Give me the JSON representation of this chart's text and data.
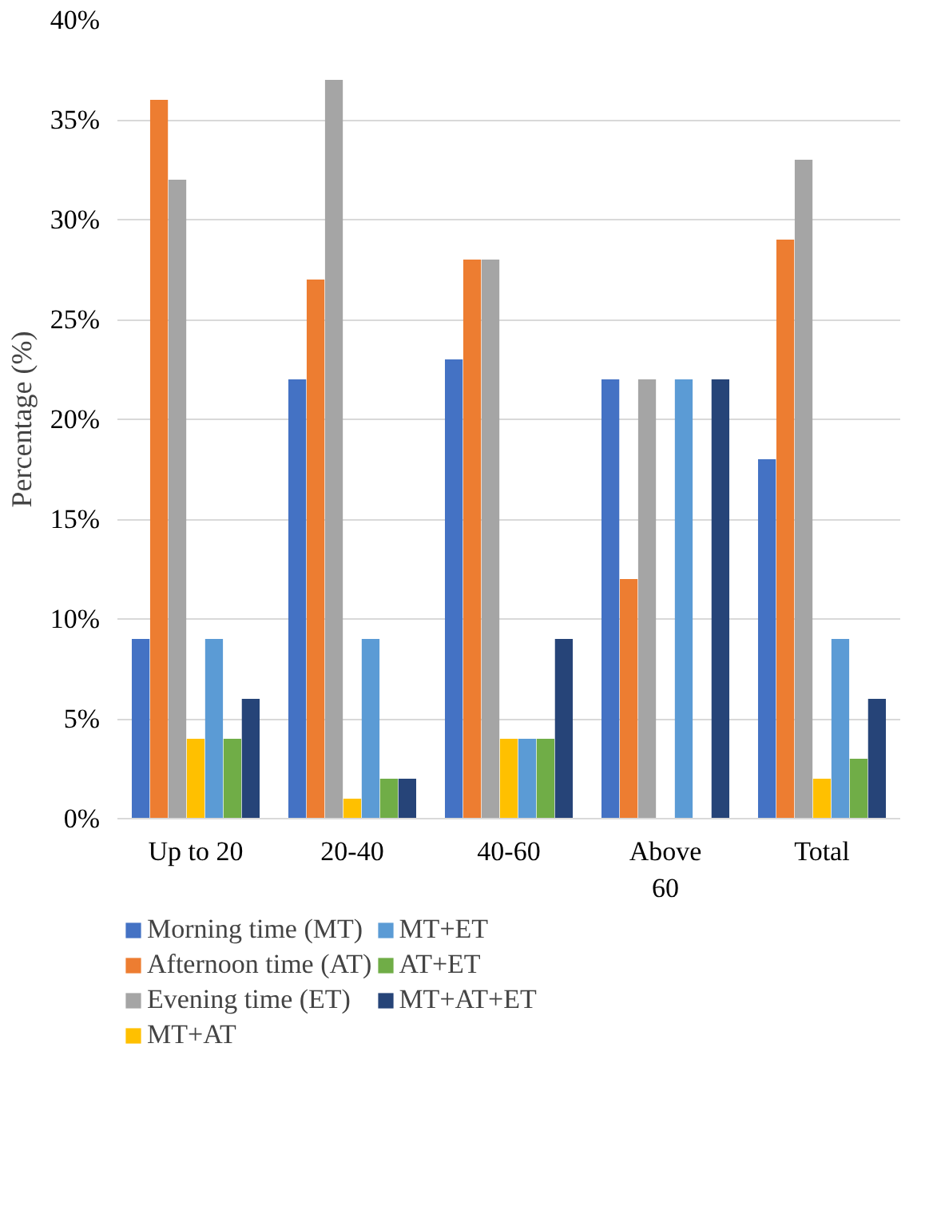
{
  "chart_data": {
    "type": "bar",
    "ylabel": "Percentage (%)",
    "categories": [
      "Up to 20",
      "20-40",
      "40-60",
      "Above 60",
      "Total"
    ],
    "series": [
      {
        "name": "Morning time (MT)",
        "color": "#4472c4",
        "values": [
          9,
          22,
          23,
          22,
          18
        ]
      },
      {
        "name": "Afternoon time (AT)",
        "color": "#ed7d31",
        "values": [
          36,
          27,
          28,
          12,
          29
        ]
      },
      {
        "name": "Evening time (ET)",
        "color": "#a5a5a5",
        "values": [
          32,
          37,
          28,
          22,
          33
        ]
      },
      {
        "name": "MT+AT",
        "color": "#ffc000",
        "values": [
          4,
          1,
          4,
          0,
          2
        ]
      },
      {
        "name": "MT+ET",
        "color": "#5b9bd5",
        "values": [
          9,
          9,
          4,
          22,
          9
        ]
      },
      {
        "name": "AT+ET",
        "color": "#70ad47",
        "values": [
          4,
          2,
          4,
          0,
          3
        ]
      },
      {
        "name": "MT+AT+ET",
        "color": "#264478",
        "values": [
          6,
          2,
          9,
          22,
          6
        ]
      }
    ],
    "ylim": [
      0,
      40
    ],
    "yticks": [
      {
        "value": 0,
        "label": "0%"
      },
      {
        "value": 5,
        "label": "5%"
      },
      {
        "value": 10,
        "label": "10%"
      },
      {
        "value": 15,
        "label": "15%"
      },
      {
        "value": 20,
        "label": "20%"
      },
      {
        "value": 25,
        "label": "25%"
      },
      {
        "value": 30,
        "label": "30%"
      },
      {
        "value": 35,
        "label": "35%"
      },
      {
        "value": 40,
        "label": "40%"
      }
    ],
    "grid": "y",
    "legend": "bottom"
  }
}
